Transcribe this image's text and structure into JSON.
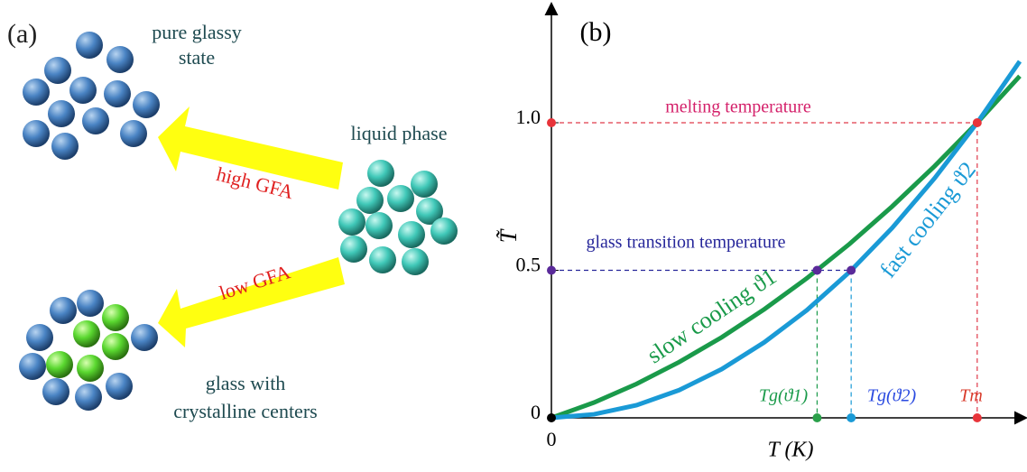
{
  "panel_a": {
    "label": "(a)",
    "pure": "pure glassy state",
    "liquid": "liquid phase",
    "high": "high GFA",
    "low": "low GFA",
    "crystal_1": "glass with",
    "crystal_2": "crystalline centers"
  },
  "chart_data": {
    "type": "line",
    "panel_label": "(b)",
    "x_label": "T (K)",
    "y_label": "T̃",
    "x": [
      0,
      0.1,
      0.2,
      0.3,
      0.4,
      0.5,
      0.6,
      0.7,
      0.8,
      0.9,
      1.0,
      1.1
    ],
    "series": [
      {
        "name": "slow cooling ϑ1",
        "color": "#1a9a4a",
        "values": [
          0,
          0.052,
          0.115,
          0.189,
          0.273,
          0.368,
          0.473,
          0.589,
          0.716,
          0.853,
          1.0,
          1.158
        ]
      },
      {
        "name": "fast cooling ϑ2",
        "color": "#1a9ad6",
        "values": [
          0,
          0.012,
          0.043,
          0.094,
          0.165,
          0.256,
          0.365,
          0.494,
          0.643,
          0.812,
          1.0,
          1.208
        ]
      }
    ],
    "xlim": [
      0,
      1.1
    ],
    "ylim": [
      0,
      1.37
    ],
    "xticks": [
      0
    ],
    "yticks": [
      0,
      0.5,
      {
        "value": 1,
        "label": "1.0"
      }
    ],
    "annotations": [
      {
        "text": "melting temperature",
        "color": "#d4206a"
      },
      {
        "text": "glass transition temperature",
        "color": "#26269a"
      },
      {
        "text": "Tg(ϑ1)",
        "color": "#1a9a4a"
      },
      {
        "text": "Tg(ϑ2)",
        "color": "#2a4ae0"
      },
      {
        "text": "Tm",
        "color": "#d83a2a"
      }
    ],
    "guides": [
      {
        "from": [
          0,
          1
        ],
        "to": [
          1,
          1
        ],
        "color": "#e03a4a"
      },
      {
        "from": [
          1,
          1
        ],
        "to": [
          1,
          0
        ],
        "color": "#e03a4a"
      },
      {
        "from": [
          0,
          0.5
        ],
        "to": [
          0.704,
          0.5
        ],
        "color": "#26269a"
      },
      {
        "from": [
          0.624,
          0.5
        ],
        "to": [
          0.624,
          0
        ],
        "color": "#1a9a4a"
      },
      {
        "from": [
          0.704,
          0.5
        ],
        "to": [
          0.704,
          0
        ],
        "color": "#1a9ad6"
      }
    ],
    "markers": [
      {
        "x": 0,
        "y": 1,
        "color": "#e8343a"
      },
      {
        "x": 1,
        "y": 1,
        "color": "#e8343a"
      },
      {
        "x": 0,
        "y": 0.5,
        "color": "#5a2a9a"
      },
      {
        "x": 0.624,
        "y": 0.5,
        "color": "#5a2a9a"
      },
      {
        "x": 0.704,
        "y": 0.5,
        "color": "#5a2a9a"
      },
      {
        "x": 0.624,
        "y": 0,
        "color": "#2aa04a"
      },
      {
        "x": 0.704,
        "y": 0,
        "color": "#1a9ad6"
      },
      {
        "x": 1,
        "y": 0,
        "color": "#e8343a"
      },
      {
        "x": 0,
        "y": 0,
        "color": "#000000"
      }
    ]
  }
}
